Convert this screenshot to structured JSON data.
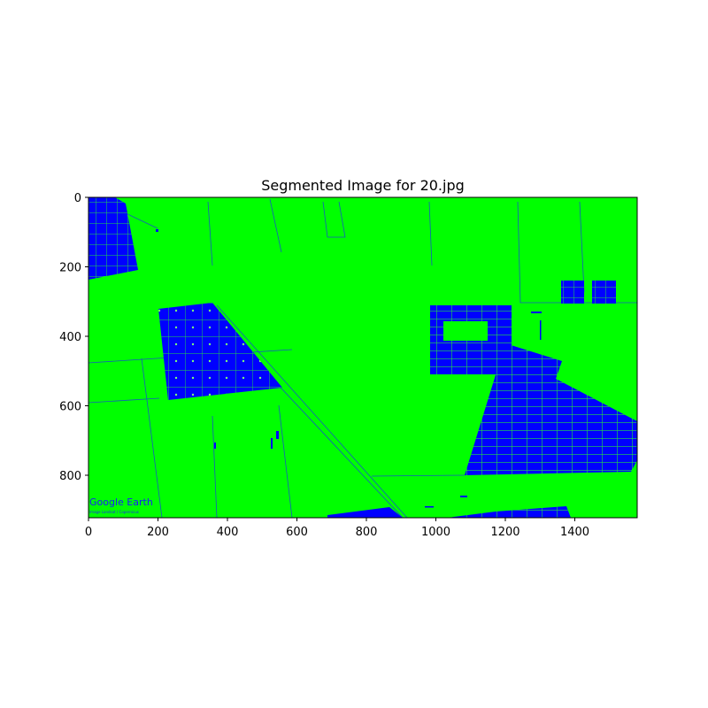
{
  "figure": {
    "title": "Segmented Image for 20.jpg",
    "watermark": "Google Earth",
    "watermark_sub": "Image Landsat / Copernicus",
    "colors": {
      "background_class": "#00ff00",
      "object_class": "#0000ff",
      "frame": "#000000"
    },
    "x_axis": {
      "range": [
        0,
        1580
      ],
      "ticks": [
        "0",
        "200",
        "400",
        "600",
        "800",
        "1000",
        "1200",
        "1400"
      ]
    },
    "y_axis": {
      "range": [
        0,
        930
      ],
      "inverted": true,
      "ticks": [
        "0",
        "200",
        "400",
        "600",
        "800"
      ]
    }
  }
}
